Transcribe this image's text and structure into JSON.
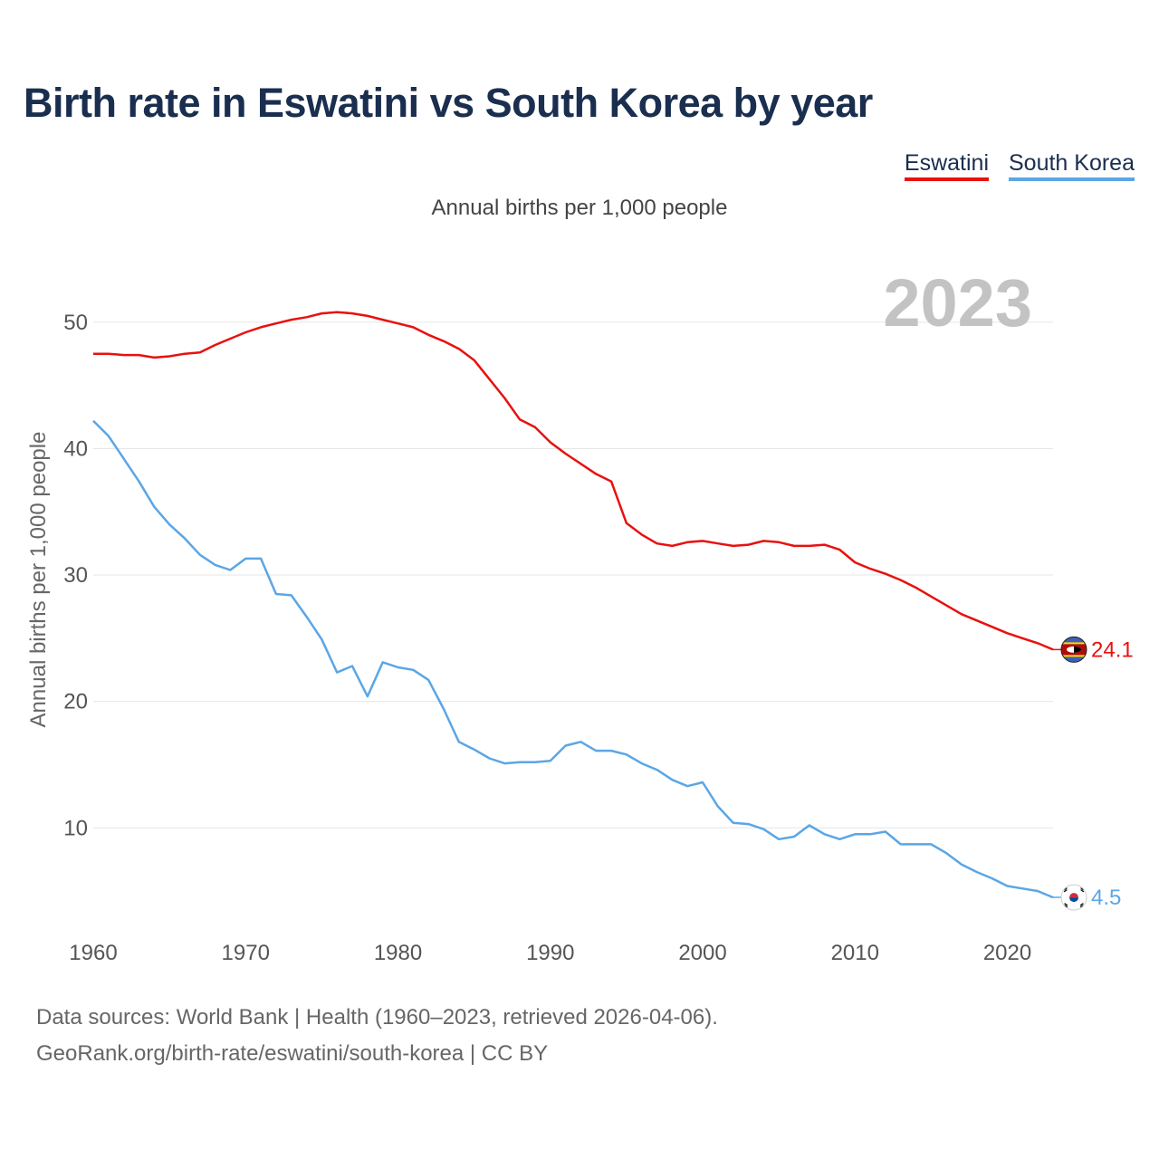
{
  "title": "Birth rate in Eswatini vs South Korea by year",
  "subtitle": "Annual births per 1,000 people",
  "year_watermark": "2023",
  "source_lines": [
    "Data sources: World Bank | Health (1960–2023, retrieved 2026-04-06).",
    "GeoRank.org/birth-rate/eswatini/south-korea | CC BY"
  ],
  "colors": {
    "eswatini": "#e8110f",
    "south_korea": "#5aa6e6",
    "title": "#1a2e4f",
    "grid": "#e6e6e6"
  },
  "legend": [
    {
      "name": "Eswatini",
      "color": "#e8110f",
      "flag_icon": "eswatini-flag-icon"
    },
    {
      "name": "South Korea",
      "color": "#5aa6e6",
      "flag_icon": "south-korea-flag-icon"
    }
  ],
  "chart_data": {
    "type": "line",
    "title": "Birth rate in Eswatini vs South Korea by year",
    "xlabel": "",
    "ylabel": "Annual births per 1,000 people",
    "xlim": [
      1960,
      2023
    ],
    "ylim": [
      3,
      54
    ],
    "xticks": [
      1960,
      1970,
      1980,
      1990,
      2000,
      2010,
      2020
    ],
    "yticks": [
      10,
      20,
      30,
      40,
      50
    ],
    "grid": true,
    "x": [
      1960,
      1961,
      1962,
      1963,
      1964,
      1965,
      1966,
      1967,
      1968,
      1969,
      1970,
      1971,
      1972,
      1973,
      1974,
      1975,
      1976,
      1977,
      1978,
      1979,
      1980,
      1981,
      1982,
      1983,
      1984,
      1985,
      1986,
      1987,
      1988,
      1989,
      1990,
      1991,
      1992,
      1993,
      1994,
      1995,
      1996,
      1997,
      1998,
      1999,
      2000,
      2001,
      2002,
      2003,
      2004,
      2005,
      2006,
      2007,
      2008,
      2009,
      2010,
      2011,
      2012,
      2013,
      2014,
      2015,
      2016,
      2017,
      2018,
      2019,
      2020,
      2021,
      2022,
      2023
    ],
    "series": [
      {
        "name": "Eswatini",
        "end_label": "24.1",
        "values": [
          47.5,
          47.5,
          47.4,
          47.4,
          47.2,
          47.3,
          47.5,
          47.6,
          48.2,
          48.7,
          49.2,
          49.6,
          49.9,
          50.2,
          50.4,
          50.7,
          50.8,
          50.7,
          50.5,
          50.2,
          49.9,
          49.6,
          49.0,
          48.5,
          47.9,
          47.0,
          45.5,
          44.0,
          42.3,
          41.7,
          40.5,
          39.6,
          38.8,
          38.0,
          37.4,
          34.1,
          33.2,
          32.5,
          32.3,
          32.6,
          32.7,
          32.5,
          32.3,
          32.4,
          32.7,
          32.6,
          32.3,
          32.3,
          32.4,
          32.0,
          31.0,
          30.5,
          30.1,
          29.6,
          29.0,
          28.3,
          27.6,
          26.9,
          26.4,
          25.9,
          25.4,
          25.0,
          24.6,
          24.1
        ]
      },
      {
        "name": "South Korea",
        "end_label": "4.5",
        "values": [
          42.2,
          41.0,
          39.2,
          37.4,
          35.4,
          34.0,
          32.9,
          31.6,
          30.8,
          30.4,
          31.3,
          31.3,
          28.5,
          28.4,
          26.7,
          24.9,
          22.3,
          22.8,
          20.4,
          23.1,
          22.7,
          22.5,
          21.7,
          19.4,
          16.8,
          16.2,
          15.5,
          15.1,
          15.2,
          15.2,
          15.3,
          16.5,
          16.8,
          16.1,
          16.1,
          15.8,
          15.1,
          14.6,
          13.8,
          13.3,
          13.6,
          11.7,
          10.4,
          10.3,
          9.9,
          9.1,
          9.3,
          10.2,
          9.5,
          9.1,
          9.5,
          9.5,
          9.7,
          8.7,
          8.7,
          8.7,
          8.0,
          7.1,
          6.5,
          6.0,
          5.4,
          5.2,
          5.0,
          4.5
        ]
      }
    ]
  }
}
